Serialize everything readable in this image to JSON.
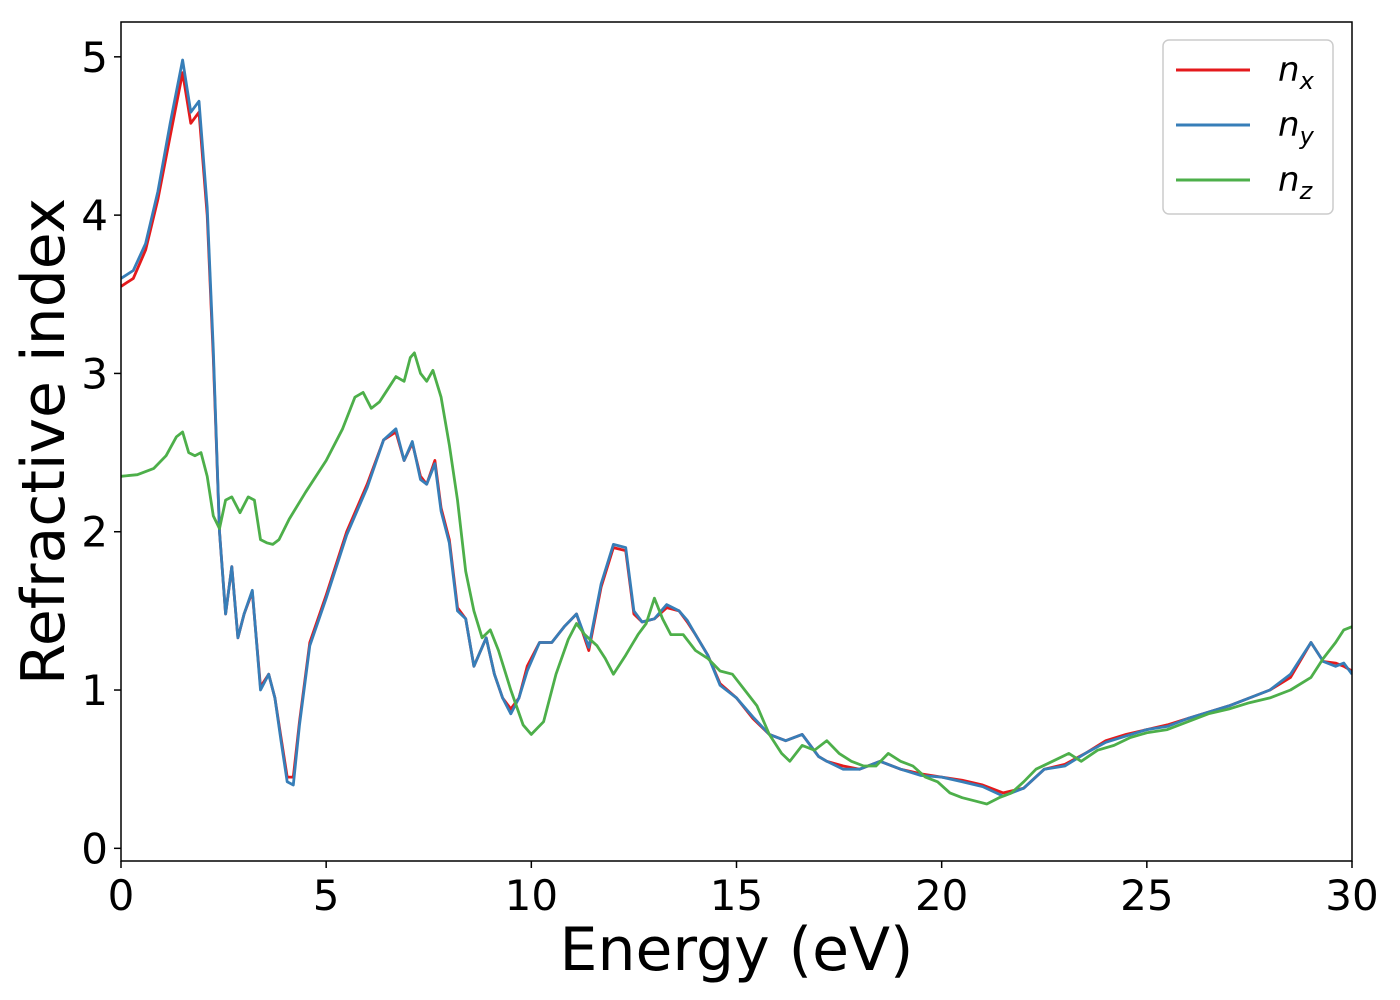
{
  "chart_data": {
    "type": "line",
    "title": "",
    "xlabel": "Energy (eV)",
    "ylabel": "Refractive index",
    "xlim": [
      0,
      30
    ],
    "ylim": [
      -0.08,
      5.22
    ],
    "xticks": [
      0,
      5,
      10,
      15,
      20,
      25,
      30
    ],
    "yticks": [
      0,
      1,
      2,
      3,
      4,
      5
    ],
    "grid": false,
    "legend_position": "top-right",
    "series": [
      {
        "name": "n_x",
        "label_base": "n",
        "label_sub": "x",
        "color": "#e41a1c",
        "x": [
          0,
          0.3,
          0.6,
          0.9,
          1.2,
          1.5,
          1.7,
          1.9,
          2.1,
          2.25,
          2.4,
          2.55,
          2.7,
          2.85,
          3.0,
          3.2,
          3.4,
          3.6,
          3.75,
          3.9,
          4.05,
          4.2,
          4.35,
          4.6,
          5.0,
          5.5,
          6.0,
          6.4,
          6.7,
          6.9,
          7.1,
          7.3,
          7.45,
          7.65,
          7.8,
          8.0,
          8.2,
          8.4,
          8.6,
          8.9,
          9.1,
          9.3,
          9.5,
          9.7,
          9.9,
          10.2,
          10.5,
          10.8,
          11.1,
          11.4,
          11.7,
          12.0,
          12.3,
          12.5,
          12.7,
          13.0,
          13.3,
          13.6,
          13.8,
          14.0,
          14.3,
          14.6,
          15.0,
          15.4,
          15.8,
          16.2,
          16.6,
          17.0,
          17.2,
          17.6,
          18.0,
          18.5,
          19.0,
          19.5,
          20.0,
          20.5,
          21.0,
          21.5,
          22.0,
          22.5,
          23.0,
          23.5,
          24.0,
          24.5,
          25.0,
          25.5,
          26.0,
          27.0,
          28.0,
          28.5,
          29.0,
          29.3,
          29.6,
          29.8,
          30.0
        ],
        "y": [
          3.55,
          3.6,
          3.78,
          4.1,
          4.5,
          4.9,
          4.58,
          4.65,
          4.0,
          3.1,
          2.0,
          1.48,
          1.78,
          1.33,
          1.48,
          1.62,
          1.02,
          1.1,
          0.95,
          0.7,
          0.45,
          0.45,
          0.8,
          1.3,
          1.6,
          2.0,
          2.3,
          2.58,
          2.63,
          2.45,
          2.56,
          2.35,
          2.3,
          2.45,
          2.15,
          1.95,
          1.52,
          1.45,
          1.15,
          1.33,
          1.1,
          0.95,
          0.88,
          0.95,
          1.15,
          1.3,
          1.3,
          1.4,
          1.48,
          1.25,
          1.65,
          1.9,
          1.88,
          1.48,
          1.43,
          1.45,
          1.52,
          1.5,
          1.43,
          1.35,
          1.22,
          1.04,
          0.95,
          0.82,
          0.72,
          0.68,
          0.72,
          0.58,
          0.55,
          0.52,
          0.5,
          0.55,
          0.5,
          0.47,
          0.45,
          0.43,
          0.4,
          0.35,
          0.38,
          0.5,
          0.53,
          0.6,
          0.68,
          0.72,
          0.75,
          0.78,
          0.82,
          0.9,
          1.0,
          1.08,
          1.3,
          1.18,
          1.17,
          1.15,
          1.12
        ]
      },
      {
        "name": "n_y",
        "label_base": "n",
        "label_sub": "y",
        "color": "#377eb8",
        "x": [
          0,
          0.3,
          0.6,
          0.9,
          1.2,
          1.5,
          1.7,
          1.9,
          2.1,
          2.25,
          2.4,
          2.55,
          2.7,
          2.85,
          3.0,
          3.2,
          3.4,
          3.6,
          3.75,
          3.9,
          4.05,
          4.2,
          4.35,
          4.6,
          5.0,
          5.5,
          6.0,
          6.4,
          6.7,
          6.9,
          7.1,
          7.3,
          7.45,
          7.65,
          7.8,
          8.0,
          8.2,
          8.4,
          8.6,
          8.9,
          9.1,
          9.3,
          9.5,
          9.7,
          9.9,
          10.2,
          10.5,
          10.8,
          11.1,
          11.4,
          11.7,
          12.0,
          12.3,
          12.5,
          12.7,
          13.0,
          13.3,
          13.6,
          13.8,
          14.0,
          14.3,
          14.6,
          15.0,
          15.4,
          15.8,
          16.2,
          16.6,
          17.0,
          17.2,
          17.6,
          18.0,
          18.5,
          19.0,
          19.5,
          20.0,
          20.5,
          21.0,
          21.5,
          22.0,
          22.5,
          23.0,
          23.5,
          24.0,
          24.5,
          25.0,
          25.5,
          26.0,
          27.0,
          28.0,
          28.5,
          29.0,
          29.3,
          29.6,
          29.8,
          30.0
        ],
        "y": [
          3.6,
          3.65,
          3.82,
          4.15,
          4.58,
          4.98,
          4.65,
          4.72,
          4.05,
          3.15,
          2.0,
          1.48,
          1.78,
          1.33,
          1.48,
          1.63,
          1.0,
          1.1,
          0.95,
          0.68,
          0.42,
          0.4,
          0.78,
          1.28,
          1.58,
          1.98,
          2.28,
          2.58,
          2.65,
          2.45,
          2.57,
          2.33,
          2.3,
          2.43,
          2.13,
          1.93,
          1.5,
          1.45,
          1.15,
          1.33,
          1.1,
          0.95,
          0.85,
          0.95,
          1.12,
          1.3,
          1.3,
          1.4,
          1.48,
          1.27,
          1.67,
          1.92,
          1.9,
          1.5,
          1.43,
          1.45,
          1.54,
          1.5,
          1.44,
          1.35,
          1.22,
          1.03,
          0.95,
          0.83,
          0.72,
          0.68,
          0.72,
          0.58,
          0.55,
          0.5,
          0.5,
          0.55,
          0.5,
          0.46,
          0.45,
          0.42,
          0.39,
          0.33,
          0.38,
          0.5,
          0.52,
          0.6,
          0.67,
          0.71,
          0.75,
          0.77,
          0.82,
          0.9,
          1.0,
          1.1,
          1.3,
          1.18,
          1.15,
          1.17,
          1.1
        ]
      },
      {
        "name": "n_z",
        "label_base": "n",
        "label_sub": "z",
        "color": "#4daf4a",
        "x": [
          0,
          0.4,
          0.8,
          1.1,
          1.35,
          1.5,
          1.65,
          1.8,
          1.95,
          2.1,
          2.25,
          2.4,
          2.55,
          2.7,
          2.9,
          3.1,
          3.25,
          3.4,
          3.55,
          3.7,
          3.85,
          4.1,
          4.5,
          5.0,
          5.4,
          5.7,
          5.9,
          6.1,
          6.3,
          6.5,
          6.7,
          6.9,
          7.05,
          7.15,
          7.3,
          7.45,
          7.6,
          7.8,
          8.0,
          8.2,
          8.4,
          8.6,
          8.8,
          9.0,
          9.2,
          9.5,
          9.8,
          10.0,
          10.3,
          10.6,
          10.9,
          11.1,
          11.3,
          11.6,
          11.8,
          12.0,
          12.3,
          12.6,
          12.8,
          13.0,
          13.2,
          13.4,
          13.7,
          14.0,
          14.3,
          14.6,
          14.9,
          15.2,
          15.5,
          15.8,
          16.1,
          16.3,
          16.6,
          16.9,
          17.2,
          17.5,
          17.8,
          18.1,
          18.4,
          18.7,
          19.0,
          19.3,
          19.6,
          19.9,
          20.2,
          20.5,
          20.8,
          21.1,
          21.4,
          21.7,
          22.0,
          22.3,
          22.7,
          23.1,
          23.4,
          23.8,
          24.2,
          24.6,
          25.0,
          25.5,
          26.0,
          26.5,
          27.0,
          27.5,
          28.0,
          28.5,
          29.0,
          29.3,
          29.6,
          29.8,
          30.0
        ],
        "y": [
          2.35,
          2.36,
          2.4,
          2.48,
          2.6,
          2.63,
          2.5,
          2.48,
          2.5,
          2.35,
          2.1,
          2.02,
          2.2,
          2.22,
          2.12,
          2.22,
          2.2,
          1.95,
          1.93,
          1.92,
          1.95,
          2.08,
          2.25,
          2.45,
          2.65,
          2.85,
          2.88,
          2.78,
          2.82,
          2.9,
          2.98,
          2.95,
          3.1,
          3.13,
          3.0,
          2.95,
          3.02,
          2.85,
          2.55,
          2.2,
          1.75,
          1.5,
          1.33,
          1.38,
          1.25,
          1.0,
          0.78,
          0.72,
          0.8,
          1.1,
          1.32,
          1.42,
          1.35,
          1.28,
          1.2,
          1.1,
          1.22,
          1.35,
          1.42,
          1.58,
          1.45,
          1.35,
          1.35,
          1.25,
          1.2,
          1.12,
          1.1,
          1.0,
          0.9,
          0.72,
          0.6,
          0.55,
          0.65,
          0.62,
          0.68,
          0.6,
          0.55,
          0.52,
          0.52,
          0.6,
          0.55,
          0.52,
          0.45,
          0.42,
          0.35,
          0.32,
          0.3,
          0.28,
          0.32,
          0.35,
          0.42,
          0.5,
          0.55,
          0.6,
          0.55,
          0.62,
          0.65,
          0.7,
          0.73,
          0.75,
          0.8,
          0.85,
          0.88,
          0.92,
          0.95,
          1.0,
          1.08,
          1.2,
          1.3,
          1.38,
          1.4
        ]
      }
    ]
  }
}
